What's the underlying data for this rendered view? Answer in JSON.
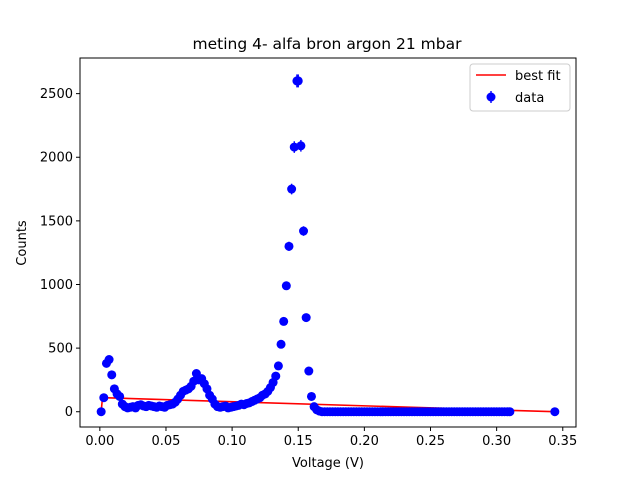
{
  "chart_data": {
    "type": "scatter",
    "title": "meting 4- alfa bron argon 21 mbar",
    "xlabel": "Voltage (V)",
    "ylabel": "Counts",
    "xlim": [
      -0.015,
      0.36
    ],
    "ylim": [
      -120,
      2780
    ],
    "xticks": [
      0.0,
      0.05,
      0.1,
      0.15,
      0.2,
      0.25,
      0.3,
      0.35
    ],
    "xtick_labels": [
      "0.00",
      "0.05",
      "0.10",
      "0.15",
      "0.20",
      "0.25",
      "0.30",
      "0.35"
    ],
    "yticks": [
      0,
      500,
      1000,
      1500,
      2000,
      2500
    ],
    "ytick_labels": [
      "0",
      "500",
      "1000",
      "1500",
      "2000",
      "2500"
    ],
    "grid": false,
    "legend_position": "top-right",
    "legend": [
      "best fit",
      "data"
    ],
    "colors": {
      "data": "#0000ff",
      "fit": "#ff0000"
    },
    "series": [
      {
        "name": "data",
        "kind": "errorbar-scatter",
        "x": [
          0.001,
          0.003,
          0.005,
          0.007,
          0.009,
          0.011,
          0.013,
          0.015,
          0.017,
          0.019,
          0.021,
          0.023,
          0.025,
          0.027,
          0.029,
          0.031,
          0.033,
          0.035,
          0.037,
          0.039,
          0.041,
          0.043,
          0.045,
          0.047,
          0.049,
          0.051,
          0.053,
          0.055,
          0.057,
          0.059,
          0.061,
          0.063,
          0.065,
          0.067,
          0.069,
          0.071,
          0.073,
          0.075,
          0.077,
          0.079,
          0.081,
          0.083,
          0.085,
          0.087,
          0.089,
          0.091,
          0.093,
          0.095,
          0.097,
          0.099,
          0.101,
          0.103,
          0.105,
          0.107,
          0.109,
          0.111,
          0.113,
          0.115,
          0.117,
          0.119,
          0.121,
          0.123,
          0.125,
          0.127,
          0.129,
          0.131,
          0.133,
          0.135,
          0.137,
          0.139,
          0.141,
          0.143,
          0.145,
          0.147,
          0.149,
          0.15,
          0.152,
          0.154,
          0.156,
          0.158,
          0.16,
          0.162,
          0.164,
          0.166,
          0.168,
          0.17,
          0.172,
          0.174,
          0.176,
          0.178,
          0.18,
          0.182,
          0.184,
          0.186,
          0.188,
          0.19,
          0.192,
          0.194,
          0.196,
          0.198,
          0.2,
          0.202,
          0.204,
          0.206,
          0.208,
          0.21,
          0.212,
          0.214,
          0.216,
          0.218,
          0.22,
          0.222,
          0.224,
          0.226,
          0.228,
          0.23,
          0.232,
          0.234,
          0.236,
          0.238,
          0.24,
          0.242,
          0.244,
          0.246,
          0.248,
          0.25,
          0.252,
          0.254,
          0.256,
          0.258,
          0.26,
          0.262,
          0.264,
          0.266,
          0.268,
          0.27,
          0.272,
          0.274,
          0.276,
          0.278,
          0.28,
          0.282,
          0.284,
          0.286,
          0.288,
          0.29,
          0.292,
          0.294,
          0.296,
          0.298,
          0.3,
          0.302,
          0.304,
          0.306,
          0.308,
          0.31,
          0.344
        ],
        "y": [
          0,
          110,
          380,
          410,
          290,
          180,
          140,
          120,
          60,
          40,
          30,
          35,
          40,
          30,
          50,
          55,
          45,
          40,
          50,
          45,
          40,
          35,
          45,
          40,
          35,
          50,
          55,
          60,
          75,
          100,
          130,
          160,
          170,
          180,
          200,
          240,
          300,
          250,
          260,
          220,
          180,
          130,
          100,
          60,
          40,
          35,
          40,
          45,
          30,
          35,
          40,
          45,
          50,
          60,
          55,
          65,
          70,
          80,
          90,
          100,
          110,
          130,
          140,
          160,
          190,
          230,
          280,
          360,
          530,
          710,
          990,
          1300,
          1750,
          2080,
          2600,
          2600,
          2090,
          1420,
          740,
          320,
          120,
          40,
          15,
          5,
          0,
          0,
          0,
          0,
          0,
          0,
          0,
          0,
          0,
          0,
          0,
          0,
          0,
          0,
          0,
          0,
          0,
          0,
          0,
          0,
          0,
          0,
          0,
          0,
          0,
          0,
          0,
          0,
          0,
          0,
          0,
          0,
          0,
          0,
          0,
          0,
          0,
          0,
          0,
          0,
          0,
          0,
          0,
          0,
          0,
          0,
          0,
          0,
          0,
          0,
          0,
          0,
          0,
          0,
          0,
          0,
          0,
          0,
          0,
          0,
          0,
          0,
          0,
          0,
          0,
          0,
          0,
          0,
          0,
          0,
          0,
          0,
          0
        ]
      },
      {
        "name": "best fit",
        "kind": "line",
        "x": [
          0.001,
          0.002,
          0.003,
          0.344
        ],
        "y": [
          0,
          110,
          110,
          0
        ]
      }
    ]
  }
}
